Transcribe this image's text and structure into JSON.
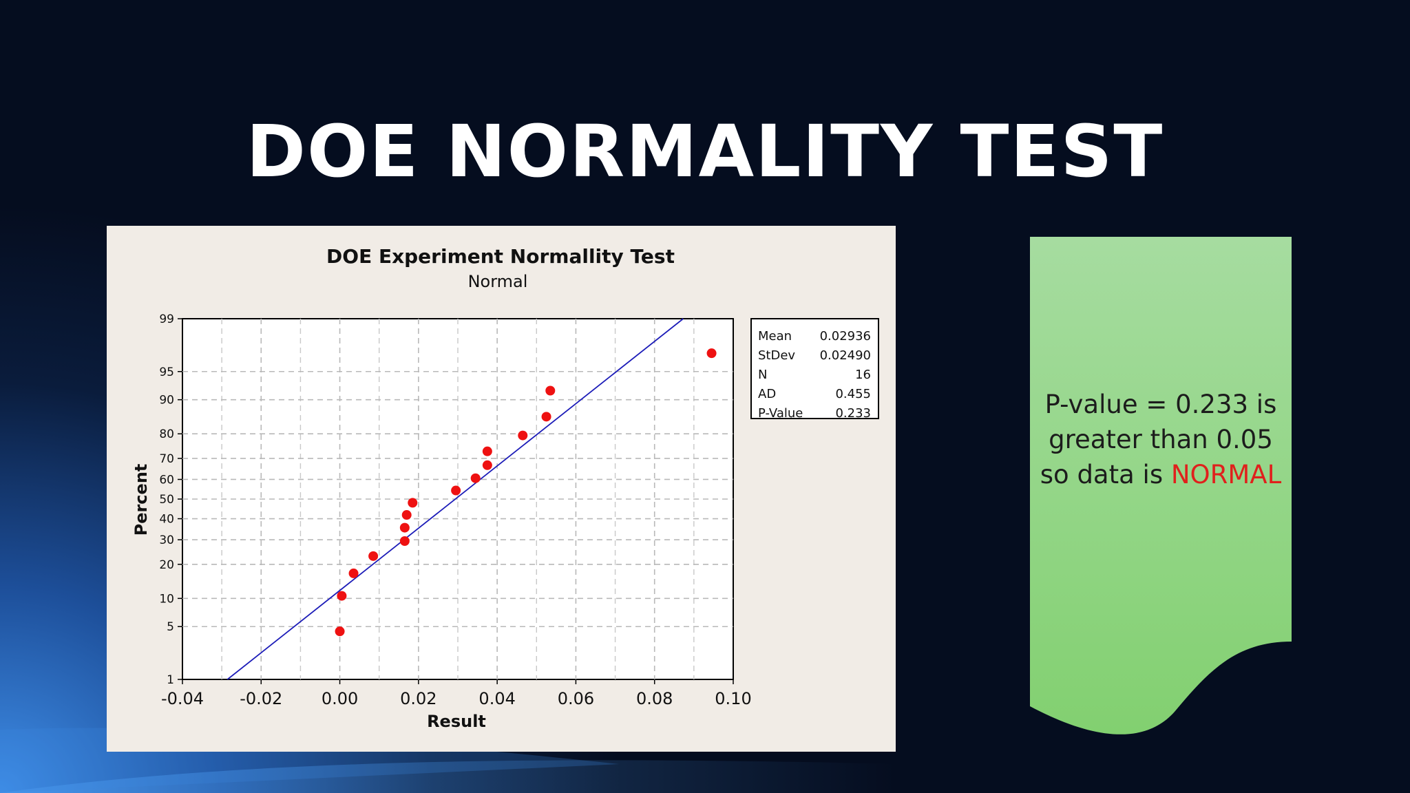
{
  "slide": {
    "title": "DOE NORMALITY TEST",
    "callout": {
      "line1": "P-value = 0.233 is",
      "line2": "greater than 0.05",
      "line3_prefix": "so data is ",
      "line3_highlight": "NORMAL",
      "highlight_color": "#e0201c",
      "fill_color": "#8fd682"
    }
  },
  "chart_data": {
    "type": "scatter",
    "title": "DOE Experiment Normallity Test",
    "subtitle": "Normal",
    "xlabel": "Result",
    "ylabel": "Percent",
    "xlim": [
      -0.04,
      0.1
    ],
    "x_ticks": [
      "-0.04",
      "-0.02",
      "0.00",
      "0.02",
      "0.04",
      "0.06",
      "0.08",
      "0.10"
    ],
    "y_scale": "normal-probability",
    "ylim": [
      1,
      99
    ],
    "y_ticks": [
      "1",
      "5",
      "10",
      "20",
      "30",
      "40",
      "50",
      "60",
      "70",
      "80",
      "90",
      "95",
      "99"
    ],
    "grid": true,
    "point_color": "#ee1111",
    "fit_line_color": "#1b1bb8",
    "points": [
      {
        "x": 0.0,
        "y": 4.4
      },
      {
        "x": 0.0005,
        "y": 10.6
      },
      {
        "x": 0.0035,
        "y": 16.9
      },
      {
        "x": 0.0085,
        "y": 23.1
      },
      {
        "x": 0.0165,
        "y": 29.4
      },
      {
        "x": 0.0165,
        "y": 35.6
      },
      {
        "x": 0.017,
        "y": 41.9
      },
      {
        "x": 0.0185,
        "y": 48.1
      },
      {
        "x": 0.0295,
        "y": 54.4
      },
      {
        "x": 0.0345,
        "y": 60.6
      },
      {
        "x": 0.0375,
        "y": 66.9
      },
      {
        "x": 0.0375,
        "y": 73.1
      },
      {
        "x": 0.0465,
        "y": 79.4
      },
      {
        "x": 0.0525,
        "y": 85.6
      },
      {
        "x": 0.0535,
        "y": 91.9
      },
      {
        "x": 0.0945,
        "y": 97.0
      }
    ],
    "fit": {
      "mean": 0.02936,
      "stdev": 0.0249
    },
    "stats_legend": {
      "position": "top-right",
      "rows": [
        {
          "label": "Mean",
          "value": "0.02936"
        },
        {
          "label": "StDev",
          "value": "0.02490"
        },
        {
          "label": "N",
          "value": "16"
        },
        {
          "label": "AD",
          "value": "0.455"
        },
        {
          "label": "P-Value",
          "value": "0.233"
        }
      ]
    }
  }
}
